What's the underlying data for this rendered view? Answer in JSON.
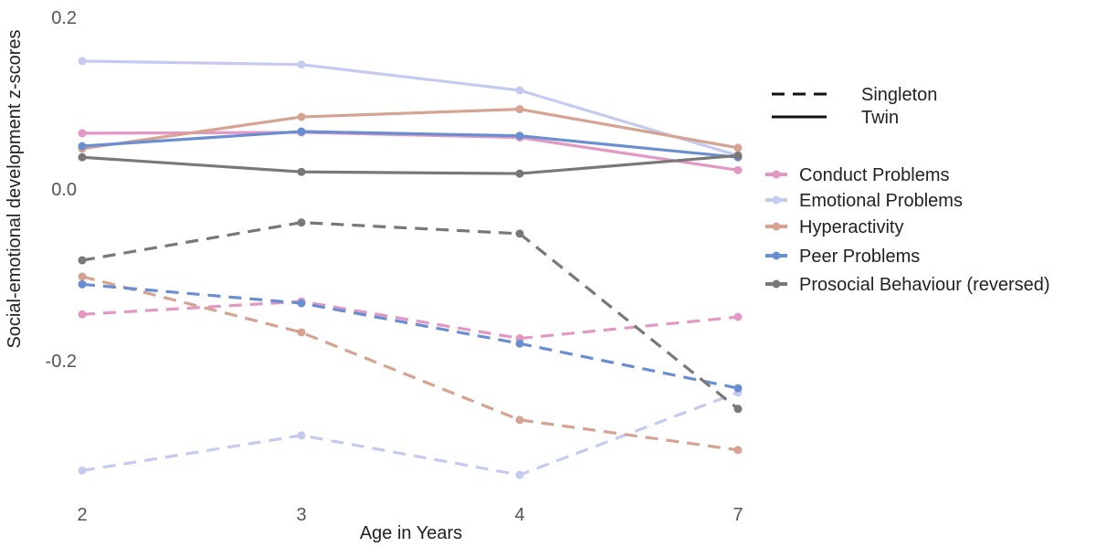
{
  "chart_data": {
    "type": "line",
    "title": "",
    "xlabel": "Age in Years",
    "ylabel": "Social-emotional development z-scores",
    "categories": [
      "2",
      "3",
      "4",
      "7"
    ],
    "y_ticks": [
      "0.2",
      "0.0",
      "-0.2"
    ],
    "y_tick_values": [
      0.2,
      0.0,
      -0.2
    ],
    "ylim": [
      -0.345,
      0.2
    ],
    "grid": false,
    "legend_position": "right",
    "linetype_legend": [
      {
        "name": "Singleton",
        "dash": "dashed"
      },
      {
        "name": "Twin",
        "dash": "solid"
      }
    ],
    "series_names": [
      {
        "name": "Conduct Problems",
        "color": "#e397c4"
      },
      {
        "name": "Emotional Problems",
        "color": "#c5cbf0"
      },
      {
        "name": "Hyperactivity",
        "color": "#d6a392"
      },
      {
        "name": "Peer Problems",
        "color": "#6a8ed2"
      },
      {
        "name": "Prosocial Behaviour (reversed)",
        "color": "#787878"
      }
    ],
    "series": [
      {
        "name": "Conduct Problems",
        "group": "Twin",
        "values": [
          0.065,
          0.066,
          0.06,
          0.022
        ]
      },
      {
        "name": "Emotional Problems",
        "group": "Twin",
        "values": [
          0.149,
          0.145,
          0.115,
          0.039
        ]
      },
      {
        "name": "Hyperactivity",
        "group": "Twin",
        "values": [
          0.047,
          0.084,
          0.093,
          0.048
        ]
      },
      {
        "name": "Peer Problems",
        "group": "Twin",
        "values": [
          0.05,
          0.067,
          0.062,
          0.037
        ]
      },
      {
        "name": "Prosocial Behaviour (reversed)",
        "group": "Twin",
        "values": [
          0.037,
          0.02,
          0.018,
          0.039
        ]
      },
      {
        "name": "Conduct Problems",
        "group": "Singleton",
        "values": [
          -0.146,
          -0.131,
          -0.174,
          -0.149
        ]
      },
      {
        "name": "Emotional Problems",
        "group": "Singleton",
        "values": [
          -0.328,
          -0.287,
          -0.333,
          -0.237
        ]
      },
      {
        "name": "Hyperactivity",
        "group": "Singleton",
        "values": [
          -0.102,
          -0.167,
          -0.269,
          -0.304
        ]
      },
      {
        "name": "Peer Problems",
        "group": "Singleton",
        "values": [
          -0.111,
          -0.133,
          -0.18,
          -0.232
        ]
      },
      {
        "name": "Prosocial Behaviour (reversed)",
        "group": "Singleton",
        "values": [
          -0.083,
          -0.039,
          -0.052,
          -0.256
        ]
      }
    ]
  }
}
